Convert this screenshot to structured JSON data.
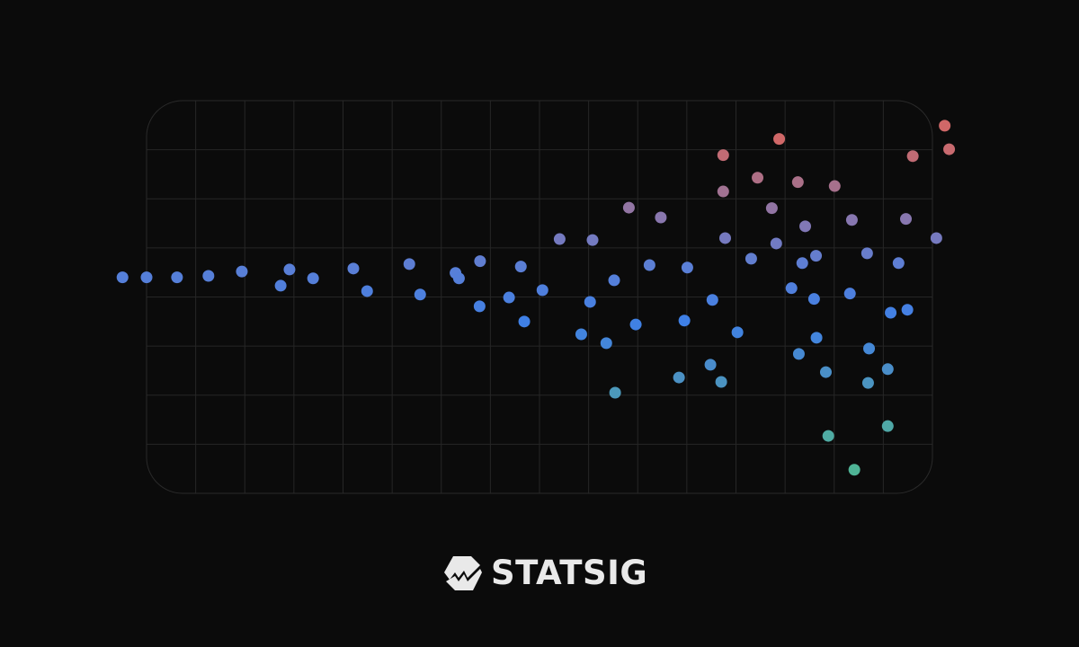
{
  "chart_data": {
    "type": "scatter",
    "title": "",
    "xlabel": "",
    "ylabel": "",
    "xlim": [
      0,
      16
    ],
    "ylim": [
      0,
      8
    ],
    "grid": true,
    "legend": "none",
    "color_by": "y",
    "color_stops": [
      {
        "y": 0.5,
        "color": "#4fb496"
      },
      {
        "y": 1.4,
        "color": "#4fa8a8"
      },
      {
        "y": 2.5,
        "color": "#4a8ec8"
      },
      {
        "y": 3.5,
        "color": "#3f80e6"
      },
      {
        "y": 4.6,
        "color": "#5a7fd6"
      },
      {
        "y": 5.5,
        "color": "#8478b4"
      },
      {
        "y": 6.3,
        "color": "#a8708a"
      },
      {
        "y": 7.2,
        "color": "#d06868"
      }
    ],
    "points": [
      [
        -0.49,
        4.4
      ],
      [
        0,
        4.4
      ],
      [
        0.62,
        4.4
      ],
      [
        1.26,
        4.43
      ],
      [
        1.94,
        4.52
      ],
      [
        2.73,
        4.23
      ],
      [
        2.91,
        4.56
      ],
      [
        3.39,
        4.38
      ],
      [
        4.21,
        4.58
      ],
      [
        4.49,
        4.12
      ],
      [
        5.35,
        4.67
      ],
      [
        5.57,
        4.05
      ],
      [
        6.29,
        4.49
      ],
      [
        6.36,
        4.38
      ],
      [
        6.79,
        4.73
      ],
      [
        6.78,
        3.81
      ],
      [
        7.38,
        3.99
      ],
      [
        7.62,
        4.62
      ],
      [
        7.69,
        3.5
      ],
      [
        8.06,
        4.14
      ],
      [
        8.41,
        5.18
      ],
      [
        8.85,
        3.24
      ],
      [
        9.03,
        3.9
      ],
      [
        9.08,
        5.16
      ],
      [
        9.36,
        3.06
      ],
      [
        9.52,
        4.34
      ],
      [
        9.54,
        2.05
      ],
      [
        9.82,
        5.82
      ],
      [
        9.96,
        3.44
      ],
      [
        10.24,
        4.65
      ],
      [
        10.47,
        5.62
      ],
      [
        10.84,
        2.36
      ],
      [
        10.95,
        3.52
      ],
      [
        11.01,
        4.6
      ],
      [
        11.48,
        2.62
      ],
      [
        11.52,
        3.94
      ],
      [
        11.7,
        2.27
      ],
      [
        11.74,
        6.89
      ],
      [
        11.74,
        6.15
      ],
      [
        11.78,
        5.2
      ],
      [
        12.03,
        3.28
      ],
      [
        12.31,
        4.78
      ],
      [
        12.44,
        6.43
      ],
      [
        12.73,
        5.81
      ],
      [
        12.82,
        5.09
      ],
      [
        12.88,
        7.22
      ],
      [
        13.13,
        4.18
      ],
      [
        13.26,
        6.34
      ],
      [
        13.28,
        2.84
      ],
      [
        13.35,
        4.69
      ],
      [
        13.41,
        5.44
      ],
      [
        13.59,
        3.96
      ],
      [
        13.63,
        4.84
      ],
      [
        13.64,
        3.17
      ],
      [
        13.83,
        2.47
      ],
      [
        13.88,
        1.17
      ],
      [
        14.01,
        6.26
      ],
      [
        14.32,
        4.07
      ],
      [
        14.36,
        5.57
      ],
      [
        14.41,
        0.48
      ],
      [
        14.67,
        4.89
      ],
      [
        14.69,
        2.25
      ],
      [
        14.71,
        2.95
      ],
      [
        15.09,
        2.53
      ],
      [
        15.09,
        1.37
      ],
      [
        15.15,
        3.68
      ],
      [
        15.31,
        4.69
      ],
      [
        15.46,
        5.59
      ],
      [
        15.49,
        3.74
      ],
      [
        15.6,
        6.87
      ],
      [
        16.08,
        5.2
      ],
      [
        16.25,
        7.49
      ],
      [
        16.34,
        7.01
      ]
    ]
  },
  "logo": {
    "text": "STATSIG",
    "icon": "statsig-logo-icon",
    "color": "#e9e9e9"
  }
}
